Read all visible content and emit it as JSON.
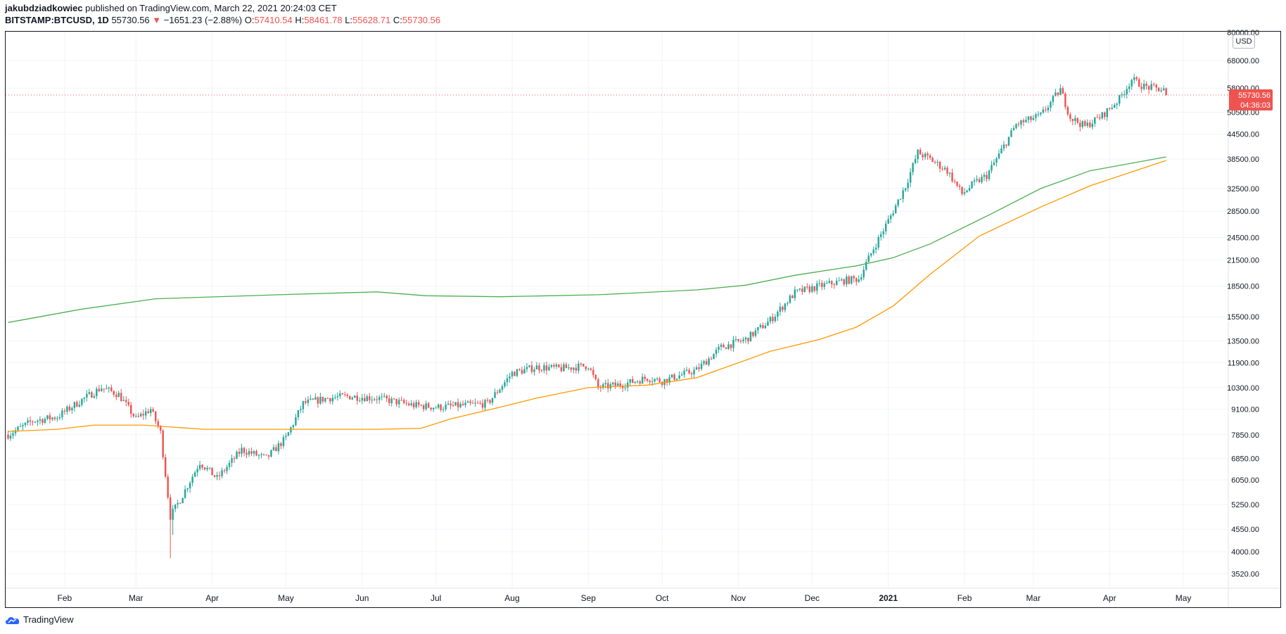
{
  "header": {
    "author": "jakubdziadkowiec",
    "published": "published on TradingView.com, March 22, 2021 20:24:03 CET",
    "symbol": "BITSTAMP:BTCUSD, 1D",
    "last": "55730.56",
    "change": "−1651.23 (−2.88%)",
    "o_label": "O:",
    "o": "57410.54",
    "h_label": "H:",
    "h": "58461.78",
    "l_label": "L:",
    "l": "55628.71",
    "c_label": "C:",
    "c": "55730.56",
    "down_arrow": "▼"
  },
  "currency": "USD",
  "price_tag": {
    "price": "55730.56",
    "countdown": "04:36:03"
  },
  "footer": {
    "brand": "TradingView"
  },
  "colors": {
    "up": "#26a69a",
    "down": "#ef5350",
    "ma_green": "#4caf50",
    "ma_orange": "#ff9800",
    "grid": "#f0f3fa"
  },
  "chart_data": {
    "type": "candlestick",
    "symbol": "BITSTAMP:BTCUSD",
    "interval": "1D",
    "scale": "log",
    "ylim": [
      3250,
      80000
    ],
    "y_ticks": [
      "80000.00",
      "68000.00",
      "58000.00",
      "50500.00",
      "44500.00",
      "38500.00",
      "32500.00",
      "28500.00",
      "24500.00",
      "21500.00",
      "18500.00",
      "15500.00",
      "13500.00",
      "11900.00",
      "10300.00",
      "9100.00",
      "7850.00",
      "6850.00",
      "6050.00",
      "5250.00",
      "4550.00",
      "4000.00",
      "3520.00"
    ],
    "x_ticks": [
      "Feb",
      "Mar",
      "Apr",
      "May",
      "Jun",
      "Jul",
      "Aug",
      "Sep",
      "Oct",
      "Nov",
      "Dec",
      "2021",
      "Feb",
      "Mar",
      "Apr",
      "May"
    ],
    "x_tick_day": [
      23,
      52,
      83,
      113,
      144,
      174,
      205,
      236,
      266,
      297,
      327,
      358,
      389,
      417,
      448,
      478
    ],
    "x_range_days": [
      -1,
      496
    ],
    "last_price": 55730.56,
    "price_anchors": [
      [
        0,
        7850
      ],
      [
        10,
        8500
      ],
      [
        20,
        8700
      ],
      [
        30,
        9600
      ],
      [
        38,
        10300
      ],
      [
        45,
        9900
      ],
      [
        52,
        8600
      ],
      [
        58,
        9100
      ],
      [
        62,
        7950
      ],
      [
        66,
        4900
      ],
      [
        70,
        5400
      ],
      [
        78,
        6700
      ],
      [
        85,
        6100
      ],
      [
        95,
        7200
      ],
      [
        105,
        6850
      ],
      [
        113,
        7700
      ],
      [
        120,
        9400
      ],
      [
        130,
        9700
      ],
      [
        138,
        9800
      ],
      [
        150,
        9700
      ],
      [
        165,
        9300
      ],
      [
        175,
        9200
      ],
      [
        195,
        9400
      ],
      [
        205,
        11200
      ],
      [
        215,
        11600
      ],
      [
        225,
        11500
      ],
      [
        236,
        11700
      ],
      [
        240,
        10300
      ],
      [
        250,
        10500
      ],
      [
        260,
        10900
      ],
      [
        266,
        10700
      ],
      [
        280,
        11400
      ],
      [
        290,
        13000
      ],
      [
        300,
        13600
      ],
      [
        310,
        15200
      ],
      [
        320,
        17800
      ],
      [
        330,
        18500
      ],
      [
        340,
        19100
      ],
      [
        346,
        19300
      ],
      [
        352,
        23000
      ],
      [
        358,
        27000
      ],
      [
        365,
        33000
      ],
      [
        370,
        40000
      ],
      [
        375,
        38500
      ],
      [
        382,
        36000
      ],
      [
        388,
        31500
      ],
      [
        393,
        33500
      ],
      [
        398,
        35000
      ],
      [
        402,
        38500
      ],
      [
        410,
        47000
      ],
      [
        420,
        49500
      ],
      [
        428,
        57500
      ],
      [
        432,
        49000
      ],
      [
        438,
        46500
      ],
      [
        445,
        49500
      ],
      [
        452,
        54500
      ],
      [
        457,
        61000
      ],
      [
        462,
        58500
      ],
      [
        470,
        57400
      ],
      [
        471,
        55730.56
      ]
    ],
    "series": [
      {
        "name": "MA green",
        "color": "#4caf50",
        "points": [
          [
            0,
            15000
          ],
          [
            30,
            16200
          ],
          [
            60,
            17200
          ],
          [
            110,
            17600
          ],
          [
            150,
            17900
          ],
          [
            170,
            17500
          ],
          [
            200,
            17400
          ],
          [
            240,
            17600
          ],
          [
            280,
            18100
          ],
          [
            300,
            18600
          ],
          [
            320,
            19700
          ],
          [
            345,
            20800
          ],
          [
            360,
            21800
          ],
          [
            375,
            23600
          ],
          [
            400,
            28100
          ],
          [
            420,
            32500
          ],
          [
            440,
            36000
          ],
          [
            471,
            39000
          ]
        ]
      },
      {
        "name": "MA orange",
        "color": "#ff9800",
        "points": [
          [
            0,
            8000
          ],
          [
            20,
            8100
          ],
          [
            35,
            8300
          ],
          [
            55,
            8300
          ],
          [
            80,
            8100
          ],
          [
            120,
            8100
          ],
          [
            150,
            8100
          ],
          [
            168,
            8150
          ],
          [
            180,
            8600
          ],
          [
            200,
            9200
          ],
          [
            215,
            9700
          ],
          [
            236,
            10300
          ],
          [
            260,
            10450
          ],
          [
            280,
            10900
          ],
          [
            310,
            12700
          ],
          [
            330,
            13600
          ],
          [
            345,
            14600
          ],
          [
            360,
            16500
          ],
          [
            375,
            19800
          ],
          [
            395,
            24700
          ],
          [
            420,
            29200
          ],
          [
            440,
            33000
          ],
          [
            471,
            38200
          ]
        ]
      }
    ]
  }
}
